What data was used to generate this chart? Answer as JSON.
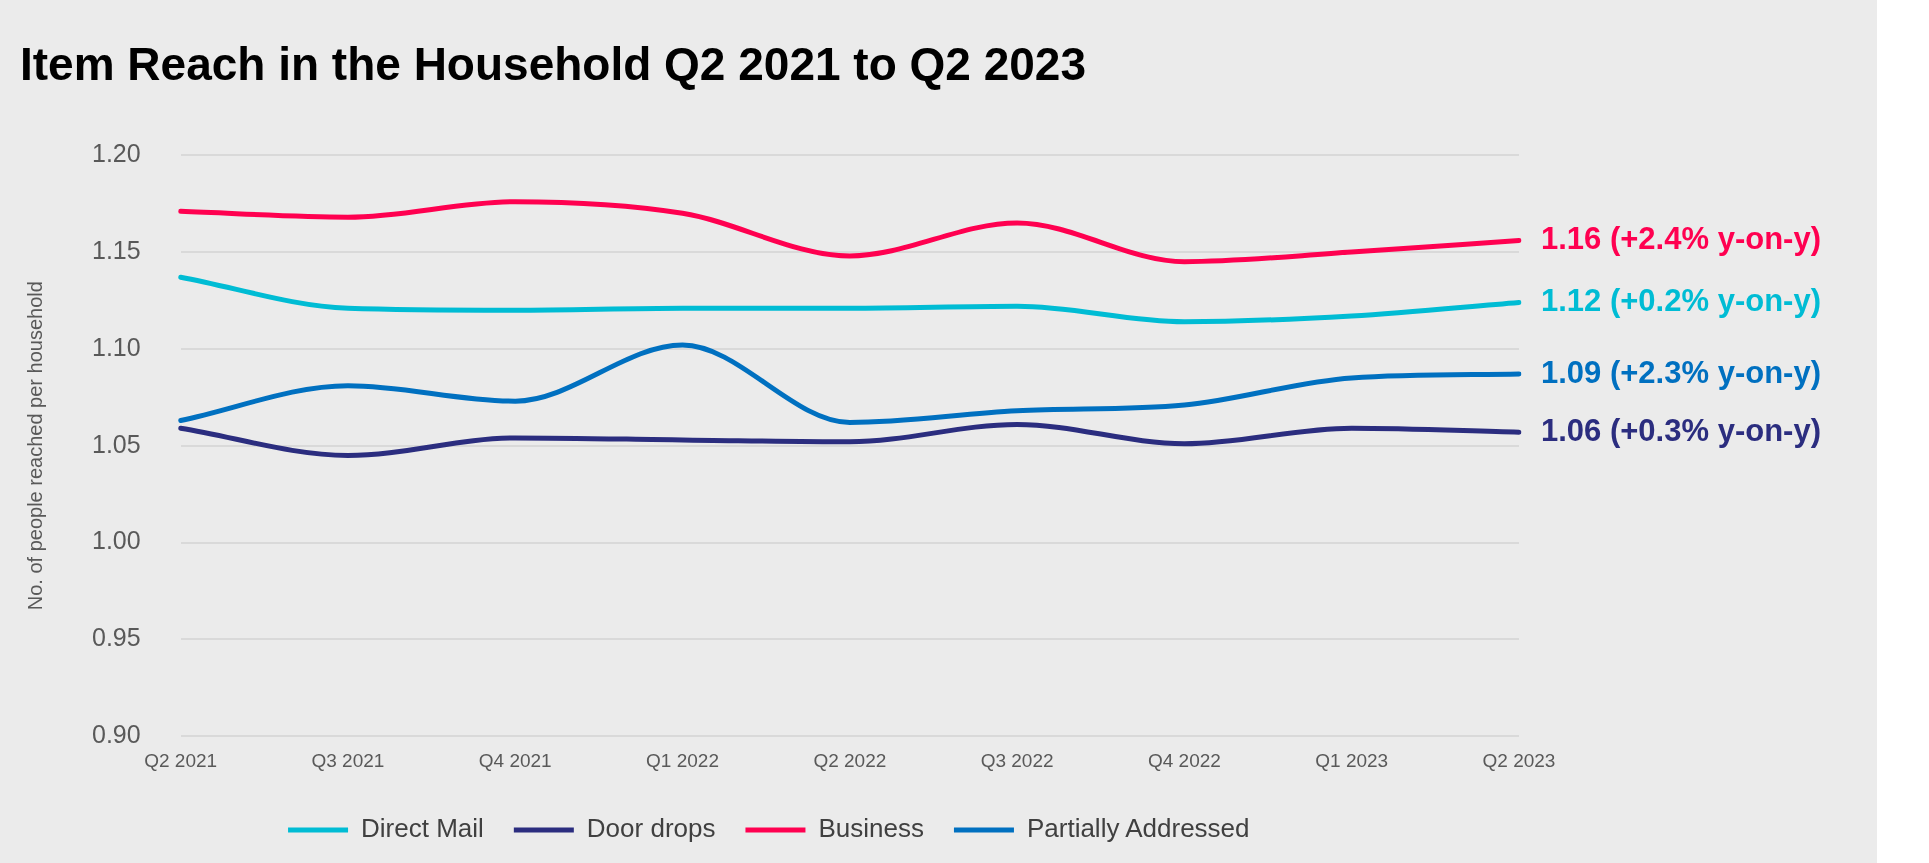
{
  "chart_data": {
    "type": "line",
    "title": "Item Reach in the Household Q2 2021 to Q2 2023",
    "ylabel": "No. of people reached per household",
    "categories": [
      "Q2 2021",
      "Q3 2021",
      "Q4 2021",
      "Q1 2022",
      "Q2 2022",
      "Q3 2022",
      "Q4 2022",
      "Q1 2023",
      "Q2 2023"
    ],
    "series": [
      {
        "name": "Direct Mail",
        "color": "#00bcd4",
        "values": [
          1.137,
          1.121,
          1.12,
          1.121,
          1.121,
          1.122,
          1.114,
          1.117,
          1.124
        ]
      },
      {
        "name": "Door drops",
        "color": "#2b2d7f",
        "values": [
          1.059,
          1.045,
          1.054,
          1.053,
          1.052,
          1.061,
          1.051,
          1.059,
          1.057
        ]
      },
      {
        "name": "Business",
        "color": "#ff0050",
        "values": [
          1.171,
          1.168,
          1.176,
          1.17,
          1.148,
          1.165,
          1.145,
          1.15,
          1.156
        ]
      },
      {
        "name": "Partially Addressed",
        "color": "#0070c0",
        "values": [
          1.063,
          1.081,
          1.073,
          1.102,
          1.062,
          1.068,
          1.071,
          1.085,
          1.087
        ]
      }
    ],
    "annotations": [
      {
        "text": "1.16 (+2.4% y-on-y)",
        "x": "Q2 2023",
        "y": 1.156
      },
      {
        "text": "1.12 (+0.2% y-on-y)",
        "x": "Q2 2023",
        "y": 1.124
      },
      {
        "text": "1.09 (+2.3% y-on-y)",
        "x": "Q2 2023",
        "y": 1.087
      },
      {
        "text": "1.06 (+0.3% y-on-y)",
        "x": "Q2 2023",
        "y": 1.057
      }
    ],
    "ylim": [
      0.9,
      1.2
    ],
    "yticks": [
      {
        "value": 0.9,
        "label": "0.90"
      },
      {
        "value": 0.95,
        "label": "0.95"
      },
      {
        "value": 1.0,
        "label": "1.00"
      },
      {
        "value": 1.05,
        "label": "1.05"
      },
      {
        "value": 1.1,
        "label": "1.10"
      },
      {
        "value": 1.15,
        "label": "1.15"
      },
      {
        "value": 1.2,
        "label": "1.20"
      }
    ],
    "grid": "y",
    "legend": "bottom",
    "marker": "none",
    "line_style": "solid"
  }
}
